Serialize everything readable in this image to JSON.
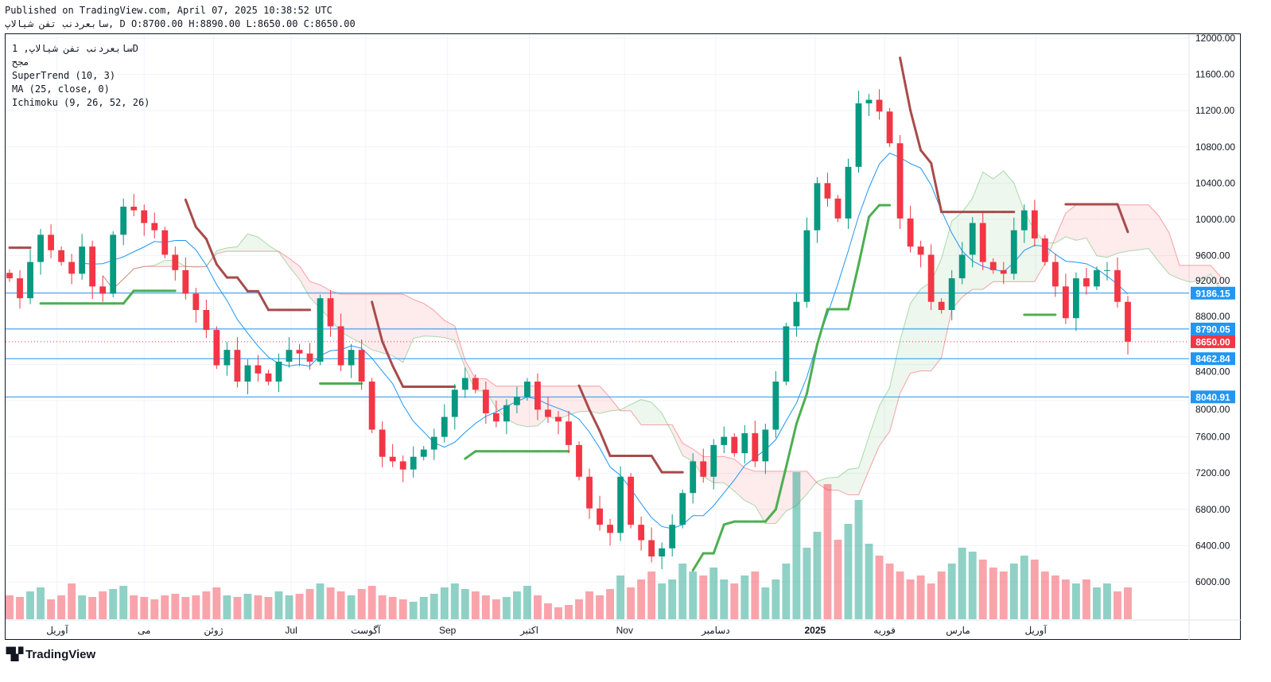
{
  "header": {
    "published": "Published on TradingView.com, April 07, 2025 10:38:52 UTC",
    "ohlc_line": "سابعردنب تفن شيالاپ, D O:8700.00 H:8890.00 L:8650.00 C:8650.00"
  },
  "legend": {
    "symbol": "سابعردنب تفن شيالاپ, 1D",
    "exchange": "مجح",
    "supertrend": "SuperTrend (10, 3)",
    "ma": "MA (25, close, 0)",
    "ichimoku": "Ichimoku (9, 26, 52, 26)"
  },
  "branding": "TradingView",
  "colors": {
    "up": "#089981",
    "down": "#f23645",
    "supertrend_up": "#4caf50",
    "supertrend_down": "#a84b4b",
    "ma": "#2196f3",
    "hline": "#2196f3",
    "last": "#f23645"
  },
  "chart_data": {
    "type": "candlestick",
    "title": "سابعردنب تفن شيالاپ 1D",
    "ylim": [
      5700,
      12150
    ],
    "y_ticks": [
      6000,
      6400,
      6800,
      7200,
      7600,
      8000,
      8400,
      8800,
      9200,
      9600,
      10000,
      10400,
      10800,
      11200,
      11600,
      12000
    ],
    "closes": [
      9350,
      9130,
      9530,
      9830,
      9660,
      9530,
      9400,
      9700,
      9260,
      9180,
      9830,
      10140,
      10100,
      9960,
      9880,
      9610,
      9440,
      9180,
      9000,
      8780,
      8390,
      8560,
      8210,
      8390,
      8300,
      8210,
      8430,
      8560,
      8520,
      8430,
      9130,
      8820,
      8390,
      8560,
      8210,
      7680,
      7380,
      7330,
      7240,
      7380,
      7460,
      7600,
      7820,
      8120,
      8250,
      8120,
      7860,
      7770,
      7950,
      8040,
      8210,
      7900,
      7820,
      7770,
      7510,
      7160,
      6810,
      6630,
      6540,
      7160,
      6630,
      6460,
      6280,
      6370,
      6630,
      6980,
      7330,
      7160,
      7510,
      7600,
      7420,
      7640,
      7330,
      7680,
      8210,
      8820,
      9090,
      9880,
      10400,
      10230,
      10010,
      10580,
      11280,
      11320,
      11190,
      10840,
      10010,
      9700,
      9610,
      9090,
      9000,
      9350,
      9610,
      9960,
      9530,
      9440,
      9400,
      9880,
      10100,
      9790,
      9530,
      9260,
      8910,
      9350,
      9260,
      9440,
      9440,
      9090,
      8650
    ],
    "volumes": [
      30,
      28,
      35,
      40,
      25,
      30,
      45,
      30,
      28,
      35,
      38,
      42,
      30,
      28,
      25,
      30,
      32,
      28,
      30,
      35,
      40,
      30,
      28,
      32,
      30,
      28,
      35,
      30,
      32,
      38,
      45,
      40,
      35,
      30,
      38,
      42,
      30,
      28,
      25,
      22,
      28,
      32,
      40,
      45,
      38,
      35,
      30,
      25,
      28,
      35,
      42,
      30,
      20,
      15,
      18,
      25,
      35,
      30,
      38,
      55,
      40,
      50,
      60,
      45,
      50,
      70,
      60,
      55,
      65,
      50,
      45,
      55,
      60,
      40,
      50,
      70,
      185,
      90,
      110,
      170,
      100,
      120,
      150,
      95,
      80,
      70,
      60,
      50,
      55,
      45,
      60,
      70,
      90,
      85,
      75,
      65,
      60,
      70,
      80,
      75,
      60,
      55,
      50,
      45,
      50,
      40,
      45,
      35,
      40
    ],
    "hlines": [
      {
        "value": 9186.15,
        "label": "9186.15"
      },
      {
        "value": 8790.05,
        "label": "8790.05"
      },
      {
        "value": 8462.84,
        "label": "8462.84"
      },
      {
        "value": 8040.91,
        "label": "8040.91"
      }
    ],
    "last_price": {
      "value": 8650,
      "label": "8650.00"
    },
    "x_labels": [
      {
        "label": "آوریل",
        "at_index": 4.6
      },
      {
        "label": "می",
        "at_index": 13
      },
      {
        "label": "ژوئن",
        "at_index": 19.7
      },
      {
        "label": "Jul",
        "at_index": 27.2
      },
      {
        "label": "آگوست",
        "at_index": 34.4
      },
      {
        "label": "Sep",
        "at_index": 42.3
      },
      {
        "label": "اکتبر",
        "at_index": 50.2
      },
      {
        "label": "Nov",
        "at_index": 59.4
      },
      {
        "label": "دسامبر",
        "at_index": 68.2
      },
      {
        "label": "2025",
        "at_index": 77.8
      },
      {
        "label": "فوریه",
        "at_index": 84.5
      },
      {
        "label": "مارس",
        "at_index": 91.6
      },
      {
        "label": "آوریل",
        "at_index": 99.1
      }
    ],
    "series": [
      {
        "name": "SuperTrend (10, 3)"
      },
      {
        "name": "MA (25, close, 0)"
      },
      {
        "name": "Ichimoku (9, 26, 52, 26)"
      }
    ]
  }
}
